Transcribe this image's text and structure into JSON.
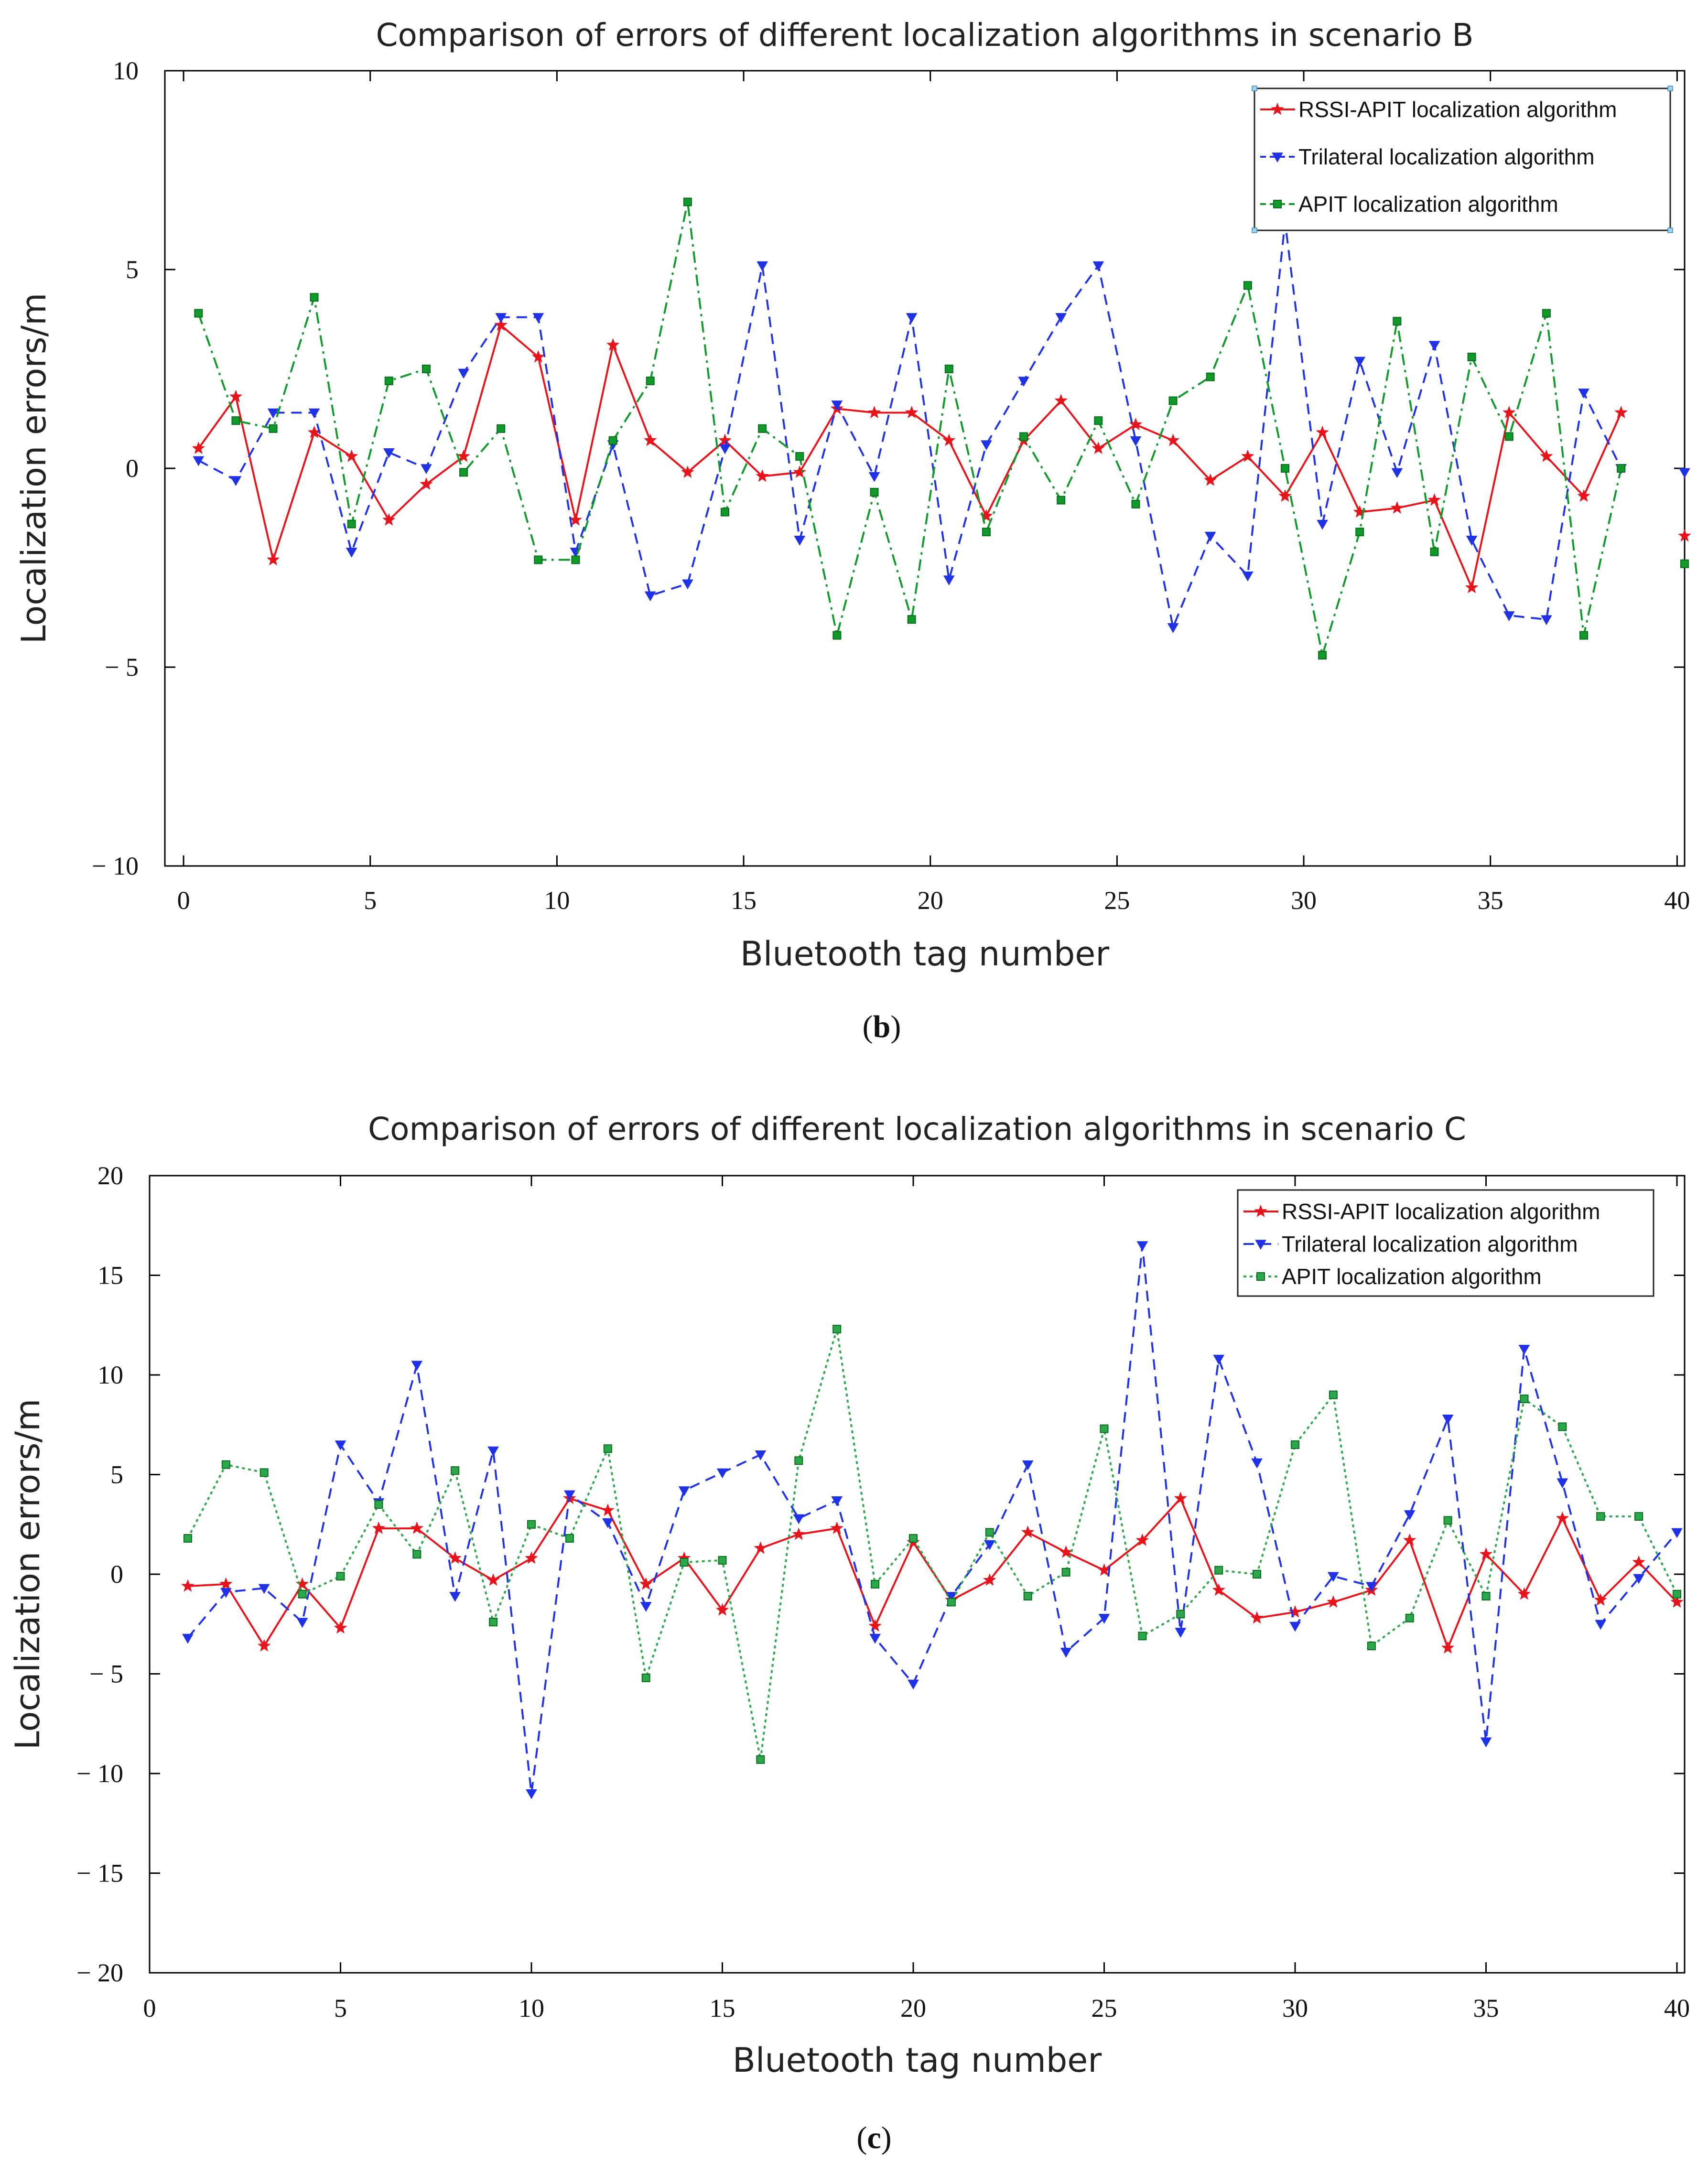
{
  "chart_data": [
    {
      "type": "line",
      "title": "Comparison of errors of different localization algorithms in scenario B",
      "xlabel": "Bluetooth tag number",
      "ylabel": "Localization errors/m",
      "xlim": [
        -0.5,
        40.2
      ],
      "ylim": [
        -10,
        10
      ],
      "xticks": [
        0,
        5,
        10,
        15,
        20,
        25,
        30,
        35,
        40
      ],
      "yticks": [
        10,
        5,
        0,
        -5,
        -10
      ],
      "ytick_labels": [
        "10",
        "5",
        "0",
        "− 5",
        "− 10"
      ],
      "caption_prefix": "(",
      "caption_letter": "b",
      "caption_suffix": ")",
      "legend_position": "top-right",
      "x": [
        0.4,
        1.4,
        2.4,
        3.5,
        4.5,
        5.5,
        6.5,
        7.5,
        8.5,
        9.5,
        10.5,
        11.5,
        12.5,
        13.5,
        14.5,
        15.5,
        16.5,
        17.5,
        18.5,
        19.5,
        20.5,
        21.5,
        22.5,
        23.5,
        24.5,
        25.5,
        26.5,
        27.5,
        28.5,
        29.5,
        30.5,
        31.5,
        32.5,
        33.5,
        34.5,
        35.5,
        36.5,
        37.5,
        38.5,
        39.5,
        40.2
      ],
      "series": [
        {
          "name": "RSSI-APIT localization algorithm",
          "color": "#e8141b",
          "dash": "solid",
          "marker": "star",
          "values": [
            0.5,
            1.8,
            -2.3,
            0.9,
            0.3,
            -1.3,
            -0.4,
            0.3,
            3.6,
            2.8,
            -1.3,
            3.1,
            0.7,
            -0.1,
            0.7,
            -0.2,
            -0.1,
            1.5,
            1.4,
            1.4,
            0.7,
            -1.2,
            0.7,
            1.7,
            0.5,
            1.1,
            0.7,
            -0.3,
            0.3,
            -0.7,
            0.9,
            -1.1,
            -1.0,
            -0.8,
            -3.0,
            1.4,
            0.3,
            -0.7,
            1.4,
            null,
            -1.7
          ]
        },
        {
          "name": "Trilateral localization algorithm",
          "color": "#1f32e8",
          "dash": "dashed",
          "marker": "triangle-down",
          "values": [
            0.2,
            -0.3,
            1.4,
            1.4,
            -2.1,
            0.4,
            0.0,
            2.4,
            3.8,
            3.8,
            -2.1,
            0.6,
            -3.2,
            -2.9,
            0.5,
            5.1,
            -1.8,
            1.6,
            -0.2,
            3.8,
            -2.8,
            0.6,
            2.2,
            3.8,
            5.1,
            0.7,
            -4.0,
            -1.7,
            -2.7,
            6.2,
            -1.4,
            2.7,
            -0.1,
            3.1,
            -1.8,
            -3.7,
            -3.8,
            1.9,
            0.0,
            null,
            -0.1
          ]
        },
        {
          "name": "APIT localization algorithm",
          "color": "#0f9a2a",
          "dash": "dashdot",
          "marker": "square",
          "values": [
            3.9,
            1.2,
            1.0,
            4.3,
            -1.4,
            2.2,
            2.5,
            -0.1,
            1.0,
            -2.3,
            -2.3,
            0.7,
            2.2,
            6.7,
            -1.1,
            1.0,
            0.3,
            -4.2,
            -0.6,
            -3.8,
            2.5,
            -1.6,
            0.8,
            -0.8,
            1.2,
            -0.9,
            1.7,
            2.3,
            4.6,
            0.0,
            -4.7,
            -1.6,
            3.7,
            -2.1,
            2.8,
            0.8,
            3.9,
            -4.2,
            0.0,
            null,
            -2.4
          ]
        }
      ]
    },
    {
      "type": "line",
      "title": "Comparison of errors of different localization algorithms in scenario C",
      "xlabel": "Bluetooth tag number",
      "ylabel": "Localization errors/m",
      "xlim": [
        0,
        40.2
      ],
      "ylim": [
        -20,
        20
      ],
      "xticks": [
        0,
        5,
        10,
        15,
        20,
        25,
        30,
        35,
        40
      ],
      "yticks": [
        20,
        15,
        10,
        5,
        0,
        -5,
        -10,
        -15,
        -20
      ],
      "ytick_labels": [
        "20",
        "15",
        "10",
        "5",
        "0",
        "− 5",
        "− 10",
        "− 15",
        "− 20"
      ],
      "caption_prefix": "(",
      "caption_letter": "c",
      "caption_suffix": ")",
      "legend_position": "top-right",
      "x": [
        1,
        2,
        3,
        4,
        5,
        6,
        7,
        8,
        9,
        10,
        11,
        12,
        13,
        14,
        15,
        16,
        17,
        18,
        19,
        20,
        21,
        22,
        23,
        24,
        25,
        26,
        27,
        28,
        29,
        30,
        31,
        32,
        33,
        34,
        35,
        36,
        37,
        38,
        39,
        40
      ],
      "series": [
        {
          "name": "RSSI-APIT localization algorithm",
          "color": "#e8141b",
          "dash": "solid",
          "marker": "star",
          "values": [
            -0.6,
            -0.5,
            -3.6,
            -0.5,
            -2.7,
            2.3,
            2.3,
            0.8,
            -0.3,
            0.8,
            3.8,
            3.2,
            -0.5,
            0.8,
            -1.8,
            1.3,
            2.0,
            2.3,
            -2.6,
            1.6,
            -1.3,
            -0.3,
            2.1,
            1.1,
            0.2,
            1.7,
            3.8,
            -0.8,
            -2.2,
            -1.9,
            -1.4,
            -0.8,
            1.7,
            -3.7,
            1.0,
            -1.0,
            2.8,
            -1.3,
            0.6,
            -1.4
          ]
        },
        {
          "name": "Trilateral localization algorithm",
          "color": "#1f32e8",
          "dash": "dashed",
          "marker": "triangle-down",
          "values": [
            -3.2,
            -0.9,
            -0.7,
            -2.4,
            6.5,
            3.6,
            10.5,
            -1.1,
            6.2,
            -11.0,
            4.0,
            2.6,
            -1.6,
            4.2,
            5.1,
            6.0,
            2.8,
            3.7,
            -3.2,
            -5.5,
            -1.1,
            1.5,
            5.5,
            -3.9,
            -2.2,
            16.5,
            -2.9,
            10.8,
            5.6,
            -2.6,
            -0.1,
            -0.6,
            3.0,
            7.8,
            -8.4,
            11.3,
            4.6,
            -2.5,
            -0.2,
            2.1
          ]
        },
        {
          "name": "APIT localization algorithm",
          "color": "#2aa84a",
          "dash": "dotted",
          "marker": "square",
          "values": [
            1.8,
            5.5,
            5.1,
            -1.0,
            -0.1,
            3.5,
            1.0,
            5.2,
            -2.4,
            2.5,
            1.8,
            6.3,
            -5.2,
            0.6,
            0.7,
            -9.3,
            5.7,
            12.3,
            -0.5,
            1.8,
            -1.4,
            2.1,
            -1.1,
            0.1,
            7.3,
            -3.1,
            -2.0,
            0.2,
            0.0,
            6.5,
            9.0,
            -3.6,
            -2.2,
            2.7,
            -1.1,
            8.8,
            7.4,
            2.9,
            2.9,
            -1.0
          ]
        }
      ]
    }
  ]
}
